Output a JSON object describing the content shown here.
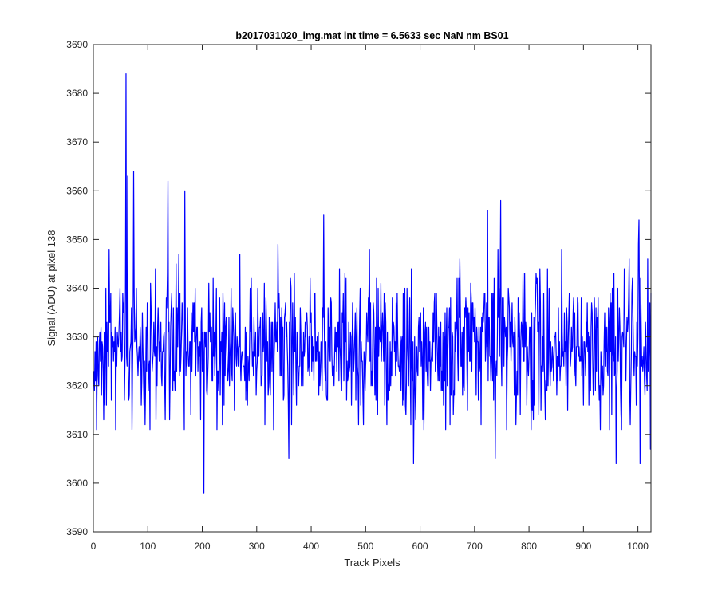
{
  "chart_data": {
    "type": "line",
    "title": "b2017031020_img.mat int time = 6.5633 sec  NaN nm BS01",
    "xlabel": "Track Pixels",
    "ylabel": "Signal (ADU) at pixel 138",
    "xlim": [
      0,
      1024
    ],
    "ylim": [
      3590,
      3690
    ],
    "xticks": [
      0,
      100,
      200,
      300,
      400,
      500,
      600,
      700,
      800,
      900,
      1000
    ],
    "yticks": [
      3590,
      3600,
      3610,
      3620,
      3630,
      3640,
      3650,
      3660,
      3670,
      3680,
      3690
    ],
    "grid": false,
    "series": [
      {
        "color": "#0000ff",
        "x_start": 1,
        "x_step": 1,
        "mean": 3628,
        "std": 7.5,
        "count": 1024,
        "notable_points": [
          {
            "x": 60,
            "y": 3684
          },
          {
            "x": 63,
            "y": 3663
          },
          {
            "x": 74,
            "y": 3664
          },
          {
            "x": 137,
            "y": 3662
          },
          {
            "x": 168,
            "y": 3660
          },
          {
            "x": 203,
            "y": 3598
          },
          {
            "x": 359,
            "y": 3605
          },
          {
            "x": 423,
            "y": 3655
          },
          {
            "x": 588,
            "y": 3604
          },
          {
            "x": 724,
            "y": 3656
          },
          {
            "x": 738,
            "y": 3605
          },
          {
            "x": 748,
            "y": 3658
          },
          {
            "x": 960,
            "y": 3604
          },
          {
            "x": 1002,
            "y": 3654
          },
          {
            "x": 1004,
            "y": 3604
          },
          {
            "x": 1023,
            "y": 3607
          }
        ]
      }
    ]
  }
}
